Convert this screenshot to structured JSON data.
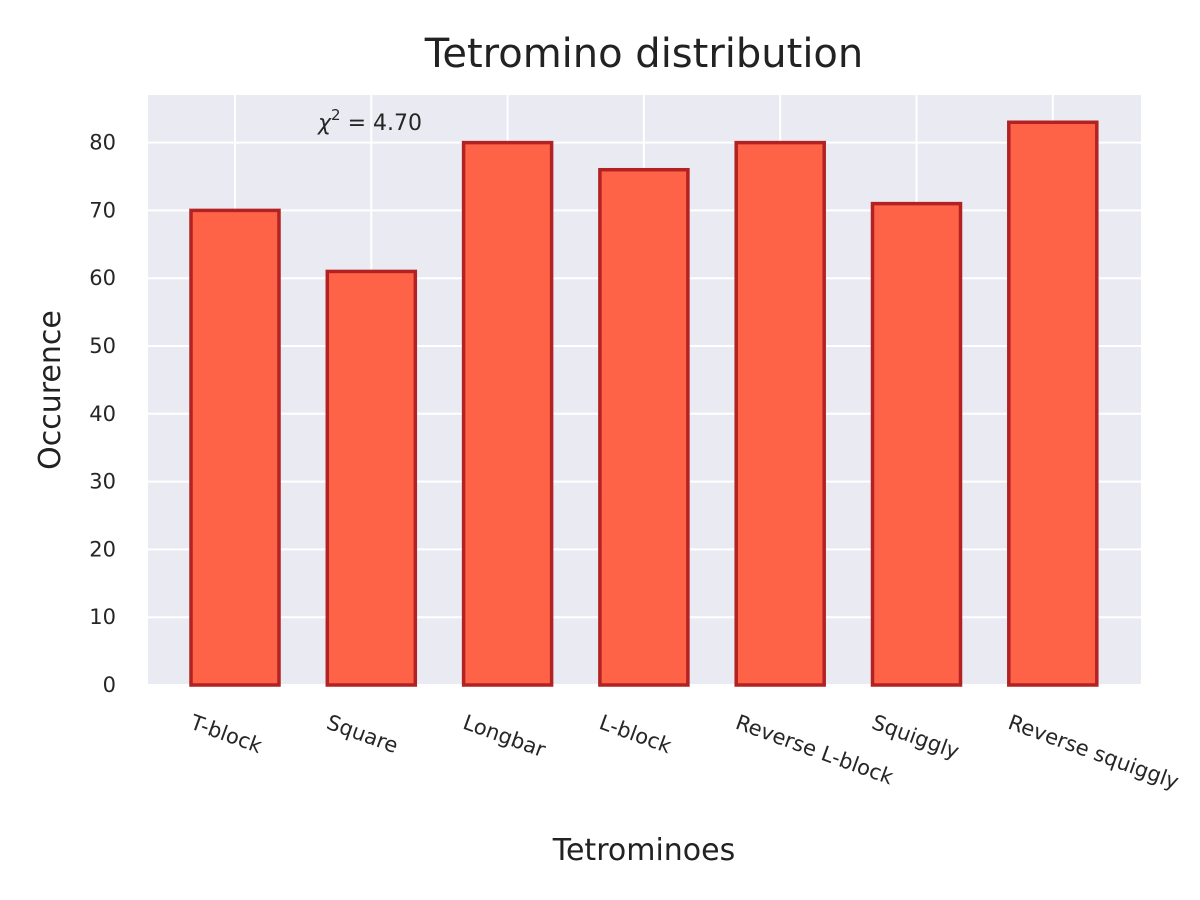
{
  "chart_data": {
    "type": "bar",
    "title": "Tetromino distribution",
    "xlabel": "Tetrominoes",
    "ylabel": "Occurence",
    "categories": [
      "T-block",
      "Square",
      "Longbar",
      "L-block",
      "Reverse L-block",
      "Squiggly",
      "Reverse squiggly"
    ],
    "values": [
      70,
      61,
      80,
      76,
      80,
      71,
      83
    ],
    "ylim": [
      0,
      87
    ],
    "yticks": [
      0,
      10,
      20,
      30,
      40,
      50,
      60,
      70,
      80
    ],
    "grid": true,
    "annotation": {
      "symbol": "χ",
      "superscript": "2",
      "text": " = 4.70"
    },
    "colors": {
      "bar_fill": "#ff6347",
      "bar_edge": "#b22222",
      "plot_background": "#eaeaf2",
      "grid": "#ffffff",
      "text": "#262626"
    }
  }
}
